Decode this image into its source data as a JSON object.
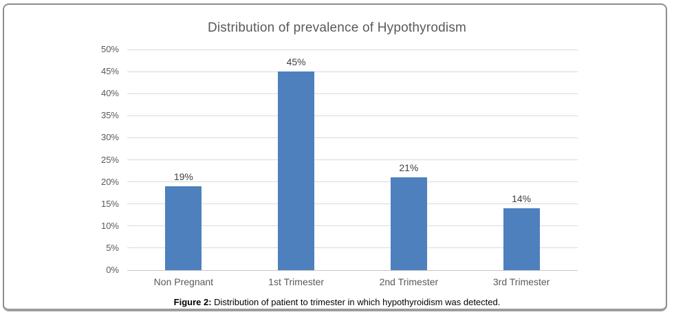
{
  "chart_data": {
    "type": "bar",
    "title": "Distribution of prevalence of Hypothyrodism",
    "categories": [
      "Non Pregnant",
      "1st Trimester",
      "2nd Trimester",
      "3rd Trimester"
    ],
    "values": [
      19,
      45,
      21,
      14
    ],
    "data_labels": [
      "19%",
      "45%",
      "21%",
      "14%"
    ],
    "y_tick_labels": [
      "0%",
      "5%",
      "10%",
      "15%",
      "20%",
      "25%",
      "30%",
      "35%",
      "40%",
      "45%",
      "50%"
    ],
    "ylim": [
      0,
      50
    ],
    "y_tick_step": 5,
    "grid": true,
    "legend": "none",
    "bar_color": "#4d80bd",
    "gridline_color": "#d9d9d9",
    "axis_text_color": "#595959",
    "title_color": "#595959"
  },
  "figure": {
    "caption_prefix": "Figure 2:",
    "caption_text": " Distribution of patient to trimester in which hypothyroidism was detected."
  }
}
